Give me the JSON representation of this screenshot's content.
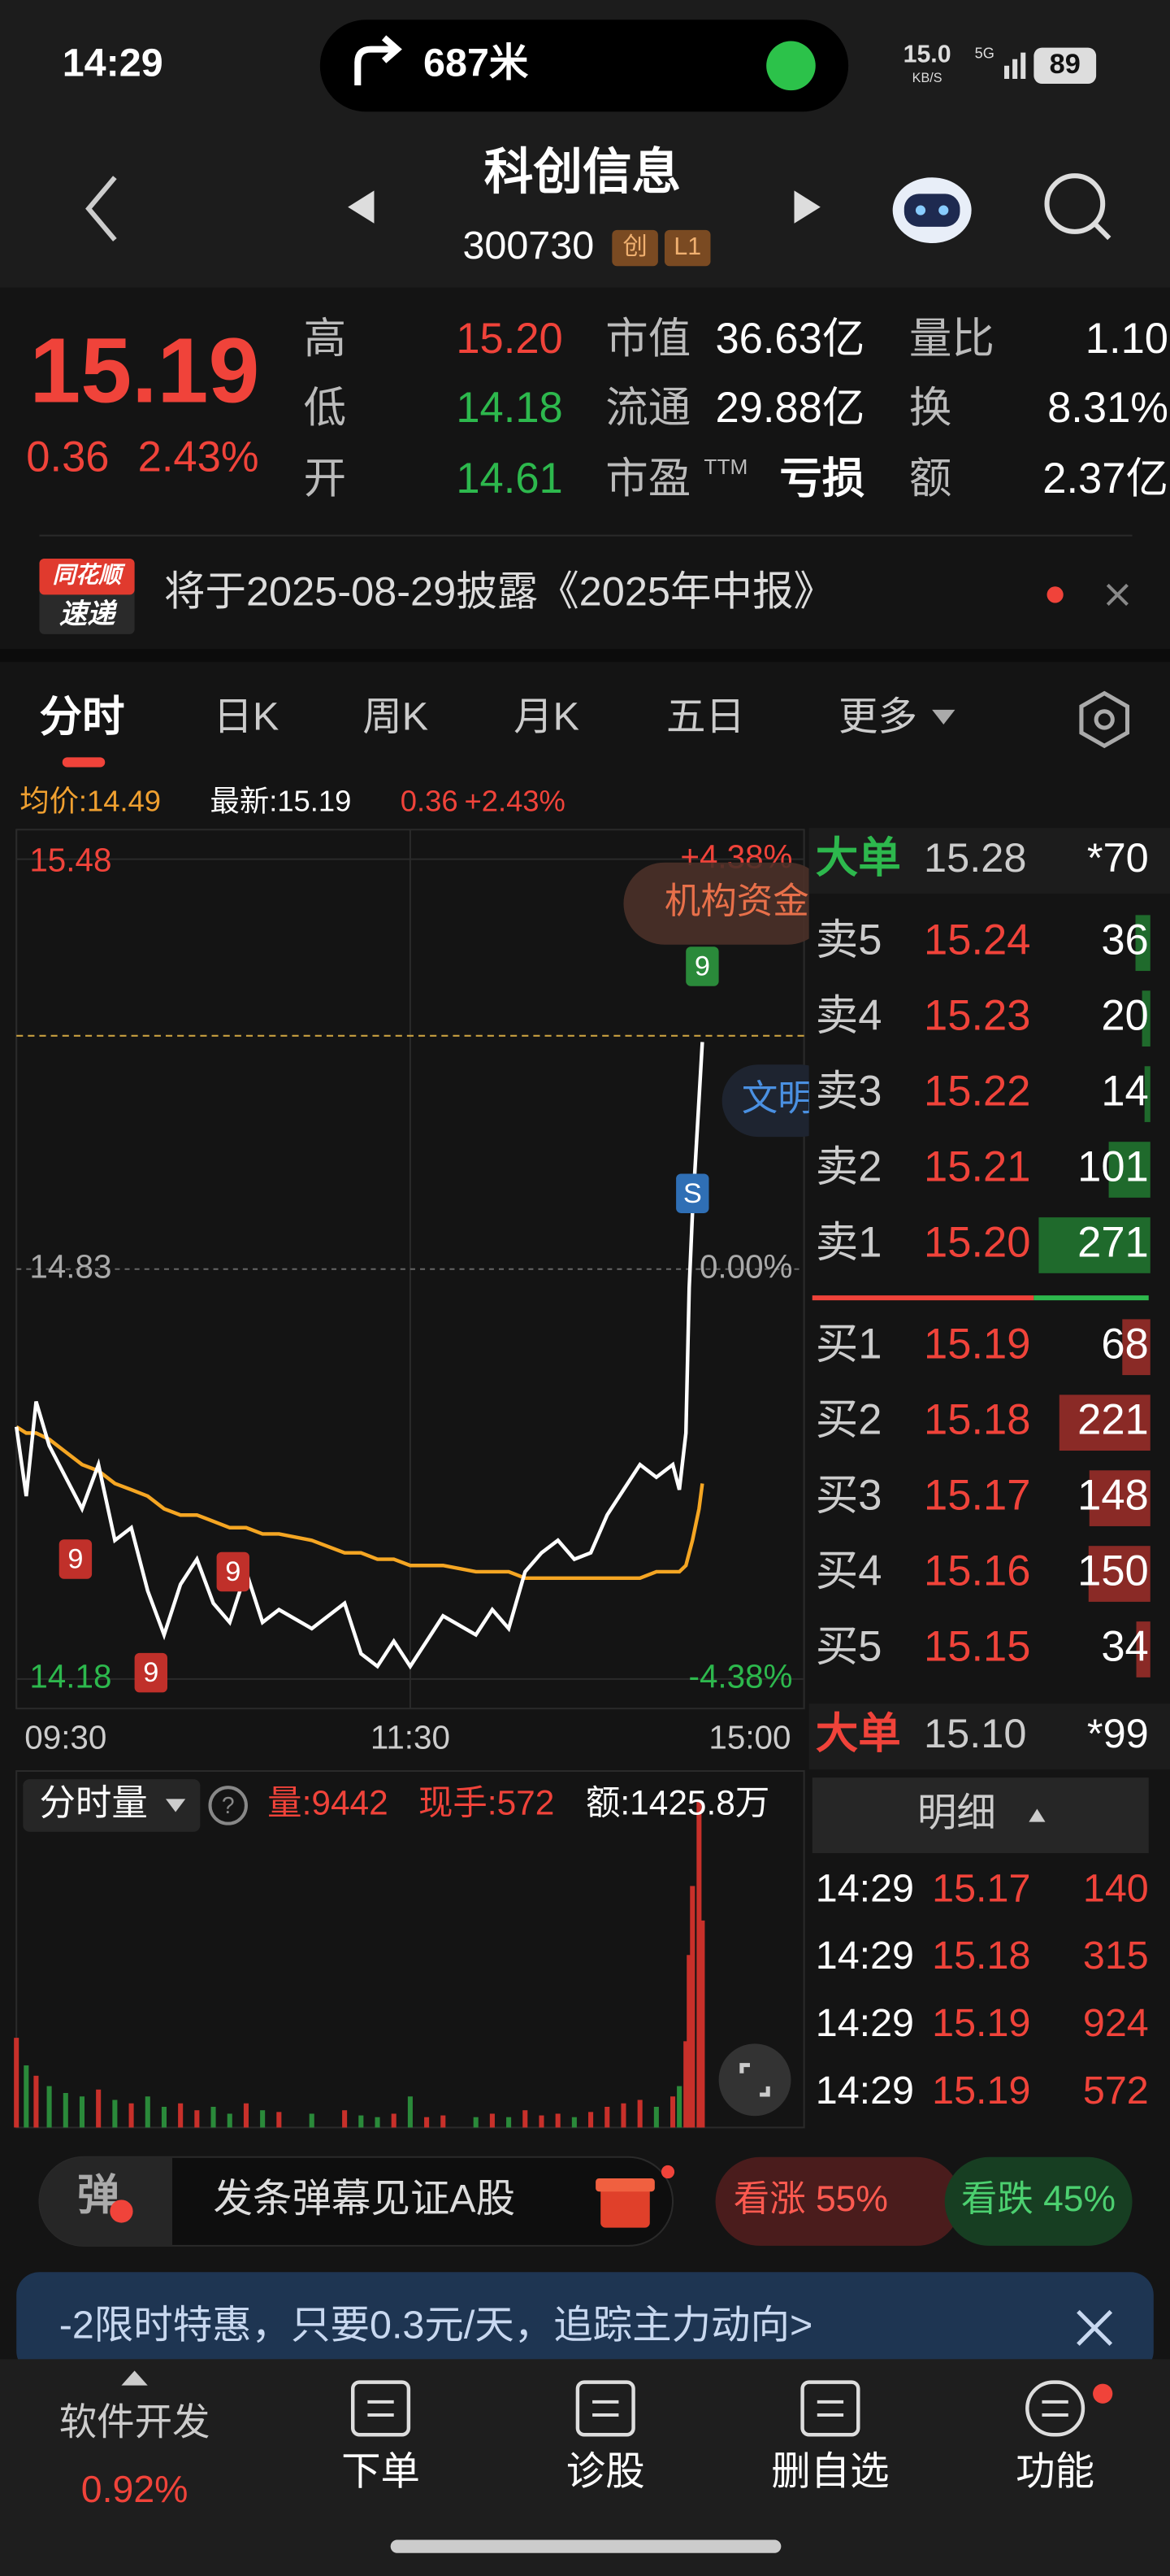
{
  "status_bar": {
    "time": "14:29",
    "nav_distance": "687米",
    "net_speed": "15.0",
    "net_unit": "KB/S",
    "signal": "5G",
    "battery": "89"
  },
  "header": {
    "name": "科创信息",
    "code": "300730",
    "tags": [
      "创",
      "L1"
    ]
  },
  "quote": {
    "price": "15.19",
    "change": "0.36",
    "change_pct": "2.43%",
    "stats": [
      [
        {
          "label": "高",
          "value": "15.20"
        },
        {
          "label": "市值",
          "value": "36.63亿"
        },
        {
          "label": "量比",
          "value": "1.10"
        }
      ],
      [
        {
          "label": "低",
          "value": "14.18"
        },
        {
          "label": "流通",
          "value": "29.88亿"
        },
        {
          "label": "换",
          "value": "8.31%"
        }
      ],
      [
        {
          "label": "开",
          "value": "14.61"
        },
        {
          "label": "市盈",
          "label_sup": "TTM",
          "value": "亏损"
        },
        {
          "label": "额",
          "value": "2.37亿"
        }
      ]
    ]
  },
  "notice": {
    "badge": [
      "同花顺",
      "速递"
    ],
    "text": "将于2025-08-29披露《2025年中报》"
  },
  "tabs": [
    "分时",
    "日K",
    "周K",
    "月K",
    "五日",
    "更多"
  ],
  "summary": {
    "avg": "均价:14.49",
    "latest": "最新:15.19",
    "change": "0.36",
    "change_pct": "+2.43%"
  },
  "chart_data": [
    {
      "type": "line",
      "x": [
        0,
        3,
        6,
        10,
        15,
        20,
        25,
        30,
        35,
        40,
        45,
        50,
        55,
        60,
        65,
        70,
        75,
        80,
        90,
        100,
        105,
        110,
        115,
        120,
        125,
        130,
        140,
        145,
        150,
        155,
        160,
        165,
        170,
        175,
        180,
        185,
        190,
        195,
        200,
        202,
        204,
        205,
        206,
        208,
        209
      ],
      "series": [
        {
          "color": "#ffffff",
          "values": [
            14.58,
            14.47,
            14.62,
            14.55,
            14.5,
            14.45,
            14.52,
            14.4,
            14.42,
            14.32,
            14.25,
            14.33,
            14.37,
            14.3,
            14.27,
            14.35,
            14.27,
            14.29,
            14.26,
            14.3,
            14.22,
            14.2,
            14.24,
            14.2,
            14.24,
            14.28,
            14.25,
            14.29,
            14.26,
            14.35,
            14.38,
            14.4,
            14.37,
            14.38,
            14.44,
            14.48,
            14.52,
            14.5,
            14.52,
            14.48,
            14.57,
            14.8,
            14.92,
            15.1,
            15.19
          ]
        },
        {
          "color": "#f5a623",
          "values": [
            14.58,
            14.57,
            14.57,
            14.56,
            14.54,
            14.52,
            14.51,
            14.49,
            14.48,
            14.47,
            14.45,
            14.44,
            14.44,
            14.43,
            14.42,
            14.42,
            14.41,
            14.41,
            14.4,
            14.38,
            14.38,
            14.37,
            14.37,
            14.36,
            14.36,
            14.36,
            14.35,
            14.35,
            14.35,
            14.34,
            14.34,
            14.34,
            14.34,
            14.34,
            14.34,
            14.34,
            14.34,
            14.35,
            14.35,
            14.35,
            14.36,
            14.38,
            14.4,
            14.45,
            14.49
          ]
        }
      ],
      "xlim": [
        0,
        240
      ],
      "xticks": [
        {
          "value": 0,
          "label": "09:30"
        },
        {
          "value": 120,
          "label": "11:30"
        },
        {
          "value": 240,
          "label": "15:00"
        }
      ],
      "ylim": [
        14.18,
        15.48
      ],
      "yticks": [
        15.48,
        14.83,
        14.18
      ],
      "y2lim": [
        -4.38,
        4.38
      ],
      "y2ticks": [
        {
          "value": 4.38,
          "label": "+4.38%"
        },
        {
          "value": 0,
          "label": "0.00%"
        },
        {
          "value": -4.38,
          "label": "-4.38%"
        }
      ],
      "reference_line": 15.2,
      "annotations": [
        {
          "label": "9",
          "x": 18,
          "y": 14.37,
          "color": "#c0302a"
        },
        {
          "label": "9",
          "x": 66,
          "y": 14.35,
          "color": "#c0302a"
        },
        {
          "label": "9",
          "x": 41,
          "y": 14.19,
          "color": "#c0302a"
        },
        {
          "label": "9",
          "x": 209,
          "y": 15.31,
          "color": "#2a8a3a"
        },
        {
          "label": "S",
          "x": 206,
          "y": 14.95,
          "color": "#2f6fb5"
        }
      ],
      "overlay_labels": [
        "机构资金",
        "文明"
      ]
    },
    {
      "type": "bar",
      "title": "分时量",
      "x": [
        0,
        3,
        6,
        10,
        15,
        20,
        25,
        30,
        35,
        40,
        45,
        50,
        55,
        60,
        65,
        70,
        75,
        80,
        90,
        100,
        105,
        110,
        115,
        120,
        125,
        130,
        140,
        145,
        150,
        155,
        160,
        165,
        170,
        175,
        180,
        185,
        190,
        195,
        200,
        202,
        204,
        205,
        206,
        208,
        209
      ],
      "values": [
        2600,
        1800,
        1500,
        1200,
        1000,
        900,
        1100,
        800,
        700,
        900,
        600,
        700,
        500,
        600,
        400,
        700,
        500,
        450,
        400,
        500,
        350,
        300,
        400,
        900,
        300,
        350,
        300,
        400,
        300,
        500,
        350,
        400,
        300,
        450,
        600,
        700,
        800,
        600,
        900,
        1200,
        2500,
        5000,
        7000,
        9442,
        6000
      ],
      "ylim": [
        0,
        10000
      ],
      "stats": [
        "量:9442",
        "现手:572",
        "额:1425.8万"
      ]
    }
  ],
  "order_book": {
    "big_ask": {
      "label": "大单",
      "price": "15.28",
      "qty": "*70"
    },
    "asks": [
      {
        "label": "卖5",
        "price": "15.24",
        "volume": 36
      },
      {
        "label": "卖4",
        "price": "15.23",
        "volume": 20
      },
      {
        "label": "卖3",
        "price": "15.22",
        "volume": 14
      },
      {
        "label": "卖2",
        "price": "15.21",
        "volume": 101
      },
      {
        "label": "卖1",
        "price": "15.20",
        "volume": 271
      }
    ],
    "bids": [
      {
        "label": "买1",
        "price": "15.19",
        "volume": 68
      },
      {
        "label": "买2",
        "price": "15.18",
        "volume": 221
      },
      {
        "label": "买3",
        "price": "15.17",
        "volume": 148
      },
      {
        "label": "买4",
        "price": "15.16",
        "volume": 150
      },
      {
        "label": "买5",
        "price": "15.15",
        "volume": 34
      }
    ],
    "big_bid": {
      "label": "大单",
      "price": "15.10",
      "qty": "*99"
    }
  },
  "trades": {
    "title": "明细",
    "rows": [
      [
        "14:29",
        "15.17",
        "140"
      ],
      [
        "14:29",
        "15.18",
        "315"
      ],
      [
        "14:29",
        "15.19",
        "924"
      ],
      [
        "14:29",
        "15.19",
        "572"
      ]
    ]
  },
  "danmu": {
    "icon": "弹",
    "text": "发条弹幕见证A股"
  },
  "vote": {
    "up_label": "看涨 55%",
    "up": 55,
    "down_label": "看跌 45%",
    "down": 45
  },
  "banner": "-2限时特惠，只要0.3元/天，追踪主力动向>",
  "nav": {
    "sector": "软件开发",
    "sector_change": "0.92%",
    "items": [
      "下单",
      "诊股",
      "删自选",
      "功能"
    ]
  }
}
